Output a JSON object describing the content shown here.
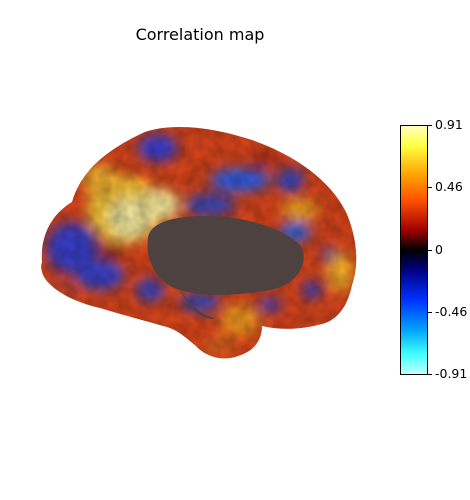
{
  "figure": {
    "title": "Correlation map"
  },
  "colorbar": {
    "vmin": -0.91,
    "vmax": 0.91,
    "ticks": [
      {
        "value": 0.91,
        "label": "0.91"
      },
      {
        "value": 0.46,
        "label": "0.46"
      },
      {
        "value": 0,
        "label": "0"
      },
      {
        "value": -0.46,
        "label": "-0.46"
      },
      {
        "value": -0.91,
        "label": "-0.91"
      }
    ],
    "colormap": "cold_hot",
    "colors": {
      "top": "#ffffc0",
      "upper_mid": "#ff5000",
      "center": "#000000",
      "lower_mid": "#0030ff",
      "bottom": "#c0ffff"
    }
  },
  "surface": {
    "view": "medial",
    "medial_wall_color": "#4d4240"
  }
}
